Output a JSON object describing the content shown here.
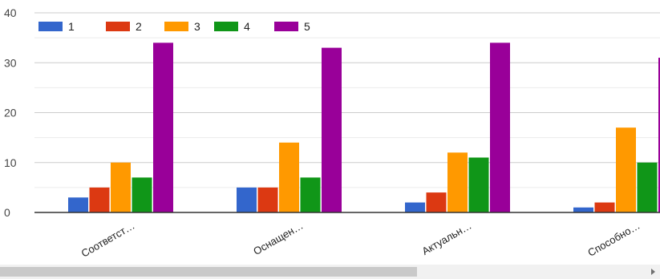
{
  "chart_data": {
    "type": "bar",
    "categories": [
      "Соответст…",
      "Оснащен…",
      "Актуальн…",
      "Способно…"
    ],
    "series": [
      {
        "name": "1",
        "color": "#3366cc",
        "values": [
          3,
          5,
          2,
          1
        ]
      },
      {
        "name": "2",
        "color": "#dc3912",
        "values": [
          5,
          5,
          4,
          2
        ]
      },
      {
        "name": "3",
        "color": "#ff9900",
        "values": [
          10,
          14,
          12,
          17
        ]
      },
      {
        "name": "4",
        "color": "#109618",
        "values": [
          7,
          7,
          11,
          10
        ]
      },
      {
        "name": "5",
        "color": "#990099",
        "values": [
          34,
          33,
          34,
          31
        ]
      }
    ],
    "yticks": [
      0,
      10,
      20,
      30,
      40
    ],
    "ylim": [
      0,
      40
    ],
    "grid": true,
    "legend": "top-left"
  },
  "scroll_right_icon": "triangle-right-icon"
}
